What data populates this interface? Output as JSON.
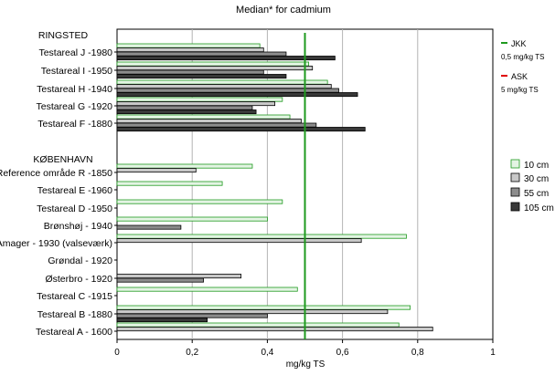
{
  "chart_data": {
    "type": "bar",
    "orientation": "horizontal",
    "title": "Median* for cadmium",
    "xlabel": "mg/kg TS",
    "ylabel": "",
    "xlim": [
      0,
      1
    ],
    "xticks": [
      0,
      0.2,
      0.4,
      0.6,
      0.8,
      1
    ],
    "xtick_labels": [
      "0",
      "0,2",
      "0,4",
      "0,6",
      "0,8",
      "1"
    ],
    "grid": "vertical",
    "legend_position": "right",
    "groups": [
      "RINGSTED",
      "KØBENHAVN"
    ],
    "categories": [
      "Testareal J -1980",
      "Testareal I -1950",
      "Testareal H -1940",
      "Testareal G -1920",
      "Testareal F -1880",
      "Reference område R -1850",
      "Testareal E -1960",
      "Testareal D -1950",
      "Brønshøj  - 1940",
      "Amager - 1930 (valseværk)",
      "Grøndal  - 1920",
      "Østerbro - 1920",
      "Testareal C -1915",
      "Testareal B -1880",
      "Testareal A - 1600"
    ],
    "category_groups": [
      "RINGSTED",
      "RINGSTED",
      "RINGSTED",
      "RINGSTED",
      "RINGSTED",
      "KØBENHAVN",
      "KØBENHAVN",
      "KØBENHAVN",
      "KØBENHAVN",
      "KØBENHAVN",
      "KØBENHAVN",
      "KØBENHAVN",
      "KØBENHAVN",
      "KØBENHAVN",
      "KØBENHAVN"
    ],
    "series": [
      {
        "name": "10 cm",
        "color": "#e4f4e4",
        "edge": "#1e9a1e",
        "values": [
          0.38,
          0.51,
          0.56,
          0.44,
          0.46,
          0.36,
          0.28,
          0.44,
          0.4,
          0.77,
          null,
          null,
          0.48,
          0.78,
          0.75
        ]
      },
      {
        "name": "30 cm",
        "color": "#c8c8c8",
        "edge": "#000000",
        "values": [
          0.39,
          0.52,
          0.57,
          0.42,
          0.49,
          0.21,
          null,
          null,
          null,
          0.65,
          null,
          0.33,
          null,
          0.72,
          0.84
        ]
      },
      {
        "name": "55 cm",
        "color": "#8c8c8c",
        "edge": "#000000",
        "values": [
          0.45,
          0.39,
          0.59,
          0.36,
          0.53,
          null,
          null,
          null,
          0.17,
          null,
          null,
          0.23,
          null,
          0.4,
          null
        ]
      },
      {
        "name": "105 cm",
        "color": "#383838",
        "edge": "#000000",
        "values": [
          0.58,
          0.45,
          0.64,
          0.37,
          0.66,
          null,
          null,
          null,
          null,
          null,
          null,
          null,
          null,
          0.24,
          null
        ]
      }
    ],
    "reference_lines": [
      {
        "name": "JKK",
        "note": "0,5 mg/kg TS",
        "value": 0.5,
        "color": "#1e9a1e"
      },
      {
        "name": "ASK",
        "note": "5 mg/kg TS",
        "value": 5,
        "color": "#e00000"
      }
    ]
  }
}
